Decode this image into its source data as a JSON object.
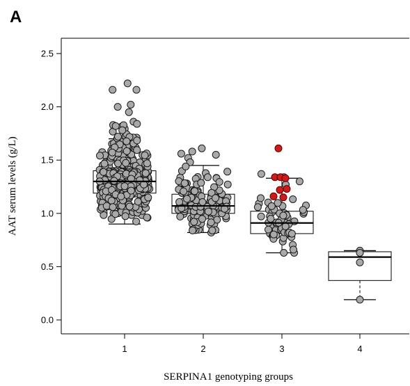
{
  "panel_label": "A",
  "chart_data": {
    "type": "box",
    "title": "",
    "xlabel": "SERPINA1 genotyping groups",
    "ylabel": "AAT serum levels (g/L)",
    "categories": [
      "1",
      "2",
      "3",
      "4"
    ],
    "ylim": [
      -0.1,
      2.6
    ],
    "yticks": [
      0.0,
      0.5,
      1.0,
      1.5,
      2.0,
      2.5
    ],
    "ytick_labels": [
      "0.0",
      "0.5",
      "1.0",
      "1.5",
      "2.0",
      "2.5"
    ],
    "grid": false,
    "colors": {
      "point": "#a9a9a9",
      "point_edge": "#1a1a1a",
      "highlight": "#d11a1a",
      "box": "#000000"
    },
    "boxes": [
      {
        "group": "1",
        "whisker_low": 0.9,
        "q1": 1.19,
        "median": 1.3,
        "q3": 1.4,
        "whisker_high": 1.7
      },
      {
        "group": "2",
        "whisker_low": 0.82,
        "q1": 1.0,
        "median": 1.07,
        "q3": 1.18,
        "whisker_high": 1.45
      },
      {
        "group": "3",
        "whisker_low": 0.63,
        "q1": 0.81,
        "median": 0.91,
        "q3": 1.02,
        "whisker_high": 1.33
      },
      {
        "group": "4",
        "whisker_low": 0.19,
        "q1": 0.37,
        "median": 0.59,
        "q3": 0.64,
        "whisker_high": 0.65
      }
    ],
    "point_groups": [
      {
        "group": "1",
        "n": 400,
        "min": 0.9,
        "q1": 1.19,
        "median": 1.3,
        "q3": 1.4,
        "max": 1.88,
        "extra": [
          2.22,
          2.16,
          2.16,
          2.0,
          2.02,
          1.95,
          1.86,
          1.84,
          1.82,
          1.78
        ]
      },
      {
        "group": "2",
        "n": 140,
        "min": 0.82,
        "q1": 1.0,
        "median": 1.07,
        "q3": 1.18,
        "max": 1.45,
        "extra": [
          1.61,
          1.58,
          1.56,
          1.55,
          1.52,
          1.48,
          1.44,
          0.82,
          0.84,
          0.84
        ]
      },
      {
        "group": "3",
        "n": 55,
        "min": 0.7,
        "q1": 0.81,
        "median": 0.91,
        "q3": 1.02,
        "max": 1.2,
        "extra": [
          1.37,
          1.34,
          1.3,
          1.27,
          1.0,
          0.98,
          0.95,
          0.63,
          0.63,
          0.66
        ]
      },
      {
        "group": "4",
        "n": 0,
        "min": 0.19,
        "q1": 0.37,
        "median": 0.59,
        "q3": 0.64,
        "max": 0.65,
        "extra": [
          0.65,
          0.63,
          0.54,
          0.19
        ]
      }
    ],
    "highlighted_points": [
      {
        "group": "3",
        "values": [
          1.61,
          1.34,
          1.34,
          1.33,
          1.23,
          1.22,
          1.16,
          1.15
        ]
      }
    ]
  }
}
